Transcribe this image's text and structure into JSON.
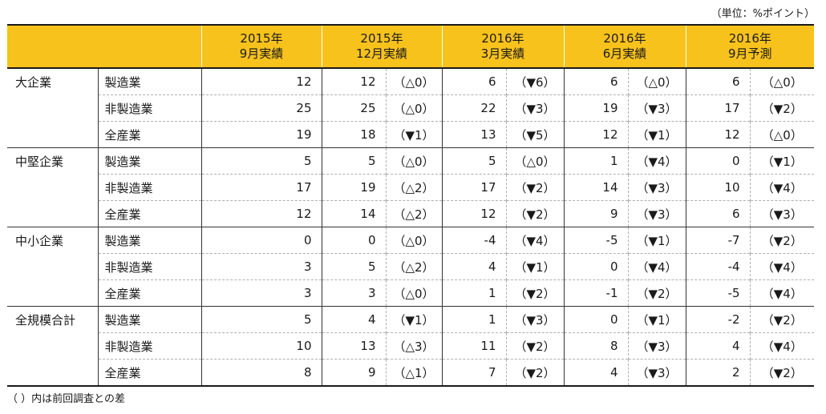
{
  "unit_label": "（単位：%ポイント）",
  "columns": [
    {
      "line1": "2015年",
      "line2": "9月実績"
    },
    {
      "line1": "2015年",
      "line2": "12月実績"
    },
    {
      "line1": "2016年",
      "line2": "3月実績"
    },
    {
      "line1": "2016年",
      "line2": "6月実績"
    },
    {
      "line1": "2016年",
      "line2": "9月予測"
    }
  ],
  "groups": [
    {
      "name": "大企業",
      "rows": [
        {
          "industry": "製造業",
          "v2015_9": "12",
          "v2015_12": "12",
          "c2015_12": "（△0）",
          "v2016_3": "6",
          "c2016_3": "（▼6）",
          "v2016_6": "6",
          "c2016_6": "（△0）",
          "v2016_9": "6",
          "c2016_9": "（△0）"
        },
        {
          "industry": "非製造業",
          "v2015_9": "25",
          "v2015_12": "25",
          "c2015_12": "（△0）",
          "v2016_3": "22",
          "c2016_3": "（▼3）",
          "v2016_6": "19",
          "c2016_6": "（▼3）",
          "v2016_9": "17",
          "c2016_9": "（▼2）"
        },
        {
          "industry": "全産業",
          "v2015_9": "19",
          "v2015_12": "18",
          "c2015_12": "（▼1）",
          "v2016_3": "13",
          "c2016_3": "（▼5）",
          "v2016_6": "12",
          "c2016_6": "（▼1）",
          "v2016_9": "12",
          "c2016_9": "（△0）"
        }
      ]
    },
    {
      "name": "中堅企業",
      "rows": [
        {
          "industry": "製造業",
          "v2015_9": "5",
          "v2015_12": "5",
          "c2015_12": "（△0）",
          "v2016_3": "5",
          "c2016_3": "（△0）",
          "v2016_6": "1",
          "c2016_6": "（▼4）",
          "v2016_9": "0",
          "c2016_9": "（▼1）"
        },
        {
          "industry": "非製造業",
          "v2015_9": "17",
          "v2015_12": "19",
          "c2015_12": "（△2）",
          "v2016_3": "17",
          "c2016_3": "（▼2）",
          "v2016_6": "14",
          "c2016_6": "（▼3）",
          "v2016_9": "10",
          "c2016_9": "（▼4）"
        },
        {
          "industry": "全産業",
          "v2015_9": "12",
          "v2015_12": "14",
          "c2015_12": "（△2）",
          "v2016_3": "12",
          "c2016_3": "（▼2）",
          "v2016_6": "9",
          "c2016_6": "（▼3）",
          "v2016_9": "6",
          "c2016_9": "（▼3）"
        }
      ]
    },
    {
      "name": "中小企業",
      "rows": [
        {
          "industry": "製造業",
          "v2015_9": "0",
          "v2015_12": "0",
          "c2015_12": "（△0）",
          "v2016_3": "-4",
          "c2016_3": "（▼4）",
          "v2016_6": "-5",
          "c2016_6": "（▼1）",
          "v2016_9": "-7",
          "c2016_9": "（▼2）"
        },
        {
          "industry": "非製造業",
          "v2015_9": "3",
          "v2015_12": "5",
          "c2015_12": "（△2）",
          "v2016_3": "4",
          "c2016_3": "（▼1）",
          "v2016_6": "0",
          "c2016_6": "（▼4）",
          "v2016_9": "-4",
          "c2016_9": "（▼4）"
        },
        {
          "industry": "全産業",
          "v2015_9": "3",
          "v2015_12": "3",
          "c2015_12": "（△0）",
          "v2016_3": "1",
          "c2016_3": "（▼2）",
          "v2016_6": "-1",
          "c2016_6": "（▼2）",
          "v2016_9": "-5",
          "c2016_9": "（▼4）"
        }
      ]
    },
    {
      "name": "全規模合計",
      "rows": [
        {
          "industry": "製造業",
          "v2015_9": "5",
          "v2015_12": "4",
          "c2015_12": "（▼1）",
          "v2016_3": "1",
          "c2016_3": "（▼3）",
          "v2016_6": "0",
          "c2016_6": "（▼1）",
          "v2016_9": "-2",
          "c2016_9": "（▼2）"
        },
        {
          "industry": "非製造業",
          "v2015_9": "10",
          "v2015_12": "13",
          "c2015_12": "（△3）",
          "v2016_3": "11",
          "c2016_3": "（▼2）",
          "v2016_6": "8",
          "c2016_6": "（▼3）",
          "v2016_9": "4",
          "c2016_9": "（▼4）"
        },
        {
          "industry": "全産業",
          "v2015_9": "8",
          "v2015_12": "9",
          "c2015_12": "（△1）",
          "v2016_3": "7",
          "c2016_3": "（▼2）",
          "v2016_6": "4",
          "c2016_6": "（▼3）",
          "v2016_9": "2",
          "c2016_9": "（▼2）"
        }
      ]
    }
  ],
  "footnote": "（ ）内は前回調査との差",
  "colors": {
    "header_bg": "#f7c21b",
    "text": "#1a1a1a",
    "rule": "#333333",
    "dashed": "#b0b0b0"
  }
}
